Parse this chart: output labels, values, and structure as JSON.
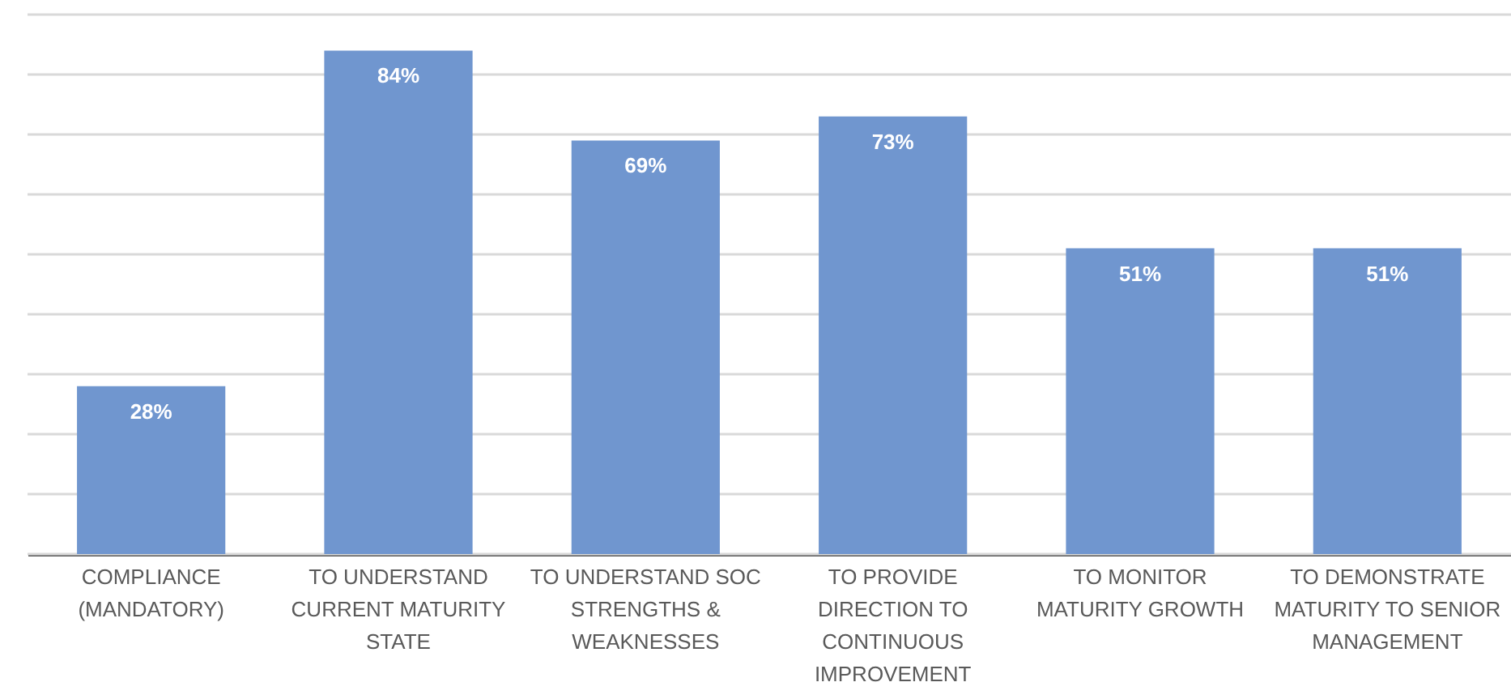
{
  "chart_data": {
    "type": "bar",
    "categories": [
      "COMPLIANCE (MANDATORY)",
      "TO UNDERSTAND CURRENT MATURITY STATE",
      "TO UNDERSTAND SOC STRENGTHS & WEAKNESSES",
      "TO PROVIDE DIRECTION TO CONTINUOUS IMPROVEMENT",
      "TO MONITOR MATURITY GROWTH",
      "TO DEMONSTRATE MATURITY TO SENIOR MANAGEMENT"
    ],
    "values": [
      28,
      84,
      69,
      73,
      51,
      51
    ],
    "value_labels": [
      "28%",
      "84%",
      "69%",
      "73%",
      "51%",
      "51%"
    ],
    "color": "#7096cf",
    "ylim": [
      0,
      90
    ],
    "yticks": [
      {
        "value": 0,
        "label": null
      },
      {
        "value": 10,
        "label": null
      },
      {
        "value": 20,
        "label": null
      },
      {
        "value": 30,
        "label": null
      },
      {
        "value": 40,
        "label": null
      },
      {
        "value": 50,
        "label": null
      },
      {
        "value": 60,
        "label": null
      },
      {
        "value": 70,
        "label": null
      },
      {
        "value": 80,
        "label": null
      },
      {
        "value": 90,
        "label": null
      }
    ],
    "grid": "y",
    "tick_labels": "x"
  }
}
